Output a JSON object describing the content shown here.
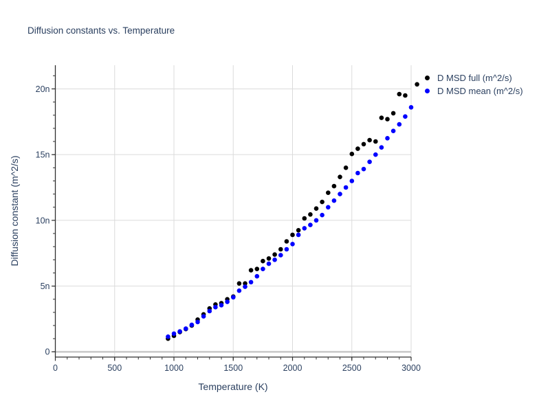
{
  "title": "Diffusion constants vs. Temperature",
  "colors": {
    "text": "#2a3f5f",
    "grid": "#dbdbdb",
    "zero_line": "#c8c8c8",
    "axis_line": "#2f2f2f",
    "series_full": "#000000",
    "series_mean": "#0000ff",
    "background": "#ffffff"
  },
  "legend": {
    "items": [
      {
        "label": "D MSD full (m^2/s)",
        "marker": "dot",
        "color": "#000000"
      },
      {
        "label": "D MSD mean (m^2/s)",
        "marker": "dot",
        "color": "#0000ff"
      }
    ],
    "position": "outside-top-right"
  },
  "chart_data": {
    "type": "scatter",
    "title": "Diffusion constants vs. Temperature",
    "xlabel": "Temperature (K)",
    "ylabel": "Diffusion constant (m^2/s)",
    "y_unit": "1e-9 m^2/s (values below in nano units, shown as 5n, 10n ...)",
    "grid": true,
    "legend_position": "top-right outside plot",
    "x_range": [
      0,
      3000
    ],
    "y_range_nano": [
      -0.4,
      21.8
    ],
    "x_major_ticks": [
      0,
      500,
      1000,
      1500,
      2000,
      2500,
      3000
    ],
    "x_minor_step": 100,
    "y_major_ticks": [
      {
        "value": 0,
        "label": "0"
      },
      {
        "value": 5,
        "label": "5n"
      },
      {
        "value": 10,
        "label": "10n"
      },
      {
        "value": 15,
        "label": "15n"
      },
      {
        "value": 20,
        "label": "20n"
      }
    ],
    "y_minor_step": 1,
    "series": [
      {
        "name": "D MSD full (m^2/s)",
        "color": "#000000",
        "marker": "circle",
        "x": [
          950,
          1000,
          1050,
          1100,
          1150,
          1200,
          1250,
          1300,
          1350,
          1400,
          1450,
          1500,
          1550,
          1600,
          1650,
          1700,
          1750,
          1800,
          1850,
          1900,
          1950,
          2000,
          2050,
          2100,
          2150,
          2200,
          2250,
          2300,
          2350,
          2400,
          2450,
          2500,
          2550,
          2600,
          2650,
          2700,
          2750,
          2800,
          2850,
          2900,
          2950,
          3050
        ],
        "y_nano": [
          1.0,
          1.22,
          1.5,
          1.73,
          2.0,
          2.45,
          2.85,
          3.3,
          3.6,
          3.7,
          4.0,
          4.2,
          5.2,
          5.2,
          6.2,
          6.3,
          6.9,
          7.1,
          7.4,
          7.8,
          8.4,
          8.9,
          9.25,
          10.15,
          10.45,
          10.9,
          11.4,
          12.1,
          12.6,
          13.3,
          14.0,
          15.05,
          15.45,
          15.8,
          16.1,
          16.0,
          17.8,
          17.7,
          18.15,
          19.6,
          19.5,
          20.35
        ]
      },
      {
        "name": "D MSD mean (m^2/s)",
        "color": "#0000ff",
        "marker": "circle",
        "x": [
          950,
          1000,
          1050,
          1100,
          1150,
          1200,
          1250,
          1300,
          1350,
          1400,
          1450,
          1500,
          1550,
          1600,
          1650,
          1700,
          1750,
          1800,
          1850,
          1900,
          1950,
          2000,
          2050,
          2100,
          2150,
          2200,
          2250,
          2300,
          2350,
          2400,
          2450,
          2500,
          2550,
          2600,
          2650,
          2700,
          2750,
          2800,
          2850,
          2900,
          2950,
          3000
        ],
        "y_nano": [
          1.15,
          1.38,
          1.55,
          1.76,
          2.05,
          2.27,
          2.7,
          3.1,
          3.4,
          3.55,
          3.8,
          4.15,
          4.65,
          4.95,
          5.3,
          5.75,
          6.3,
          6.7,
          7.0,
          7.35,
          7.8,
          8.2,
          8.9,
          9.4,
          9.65,
          10.0,
          10.4,
          11.0,
          11.5,
          12.0,
          12.5,
          13.0,
          13.6,
          13.9,
          14.45,
          15.0,
          15.55,
          16.25,
          16.8,
          17.3,
          17.9,
          18.6
        ]
      }
    ]
  }
}
